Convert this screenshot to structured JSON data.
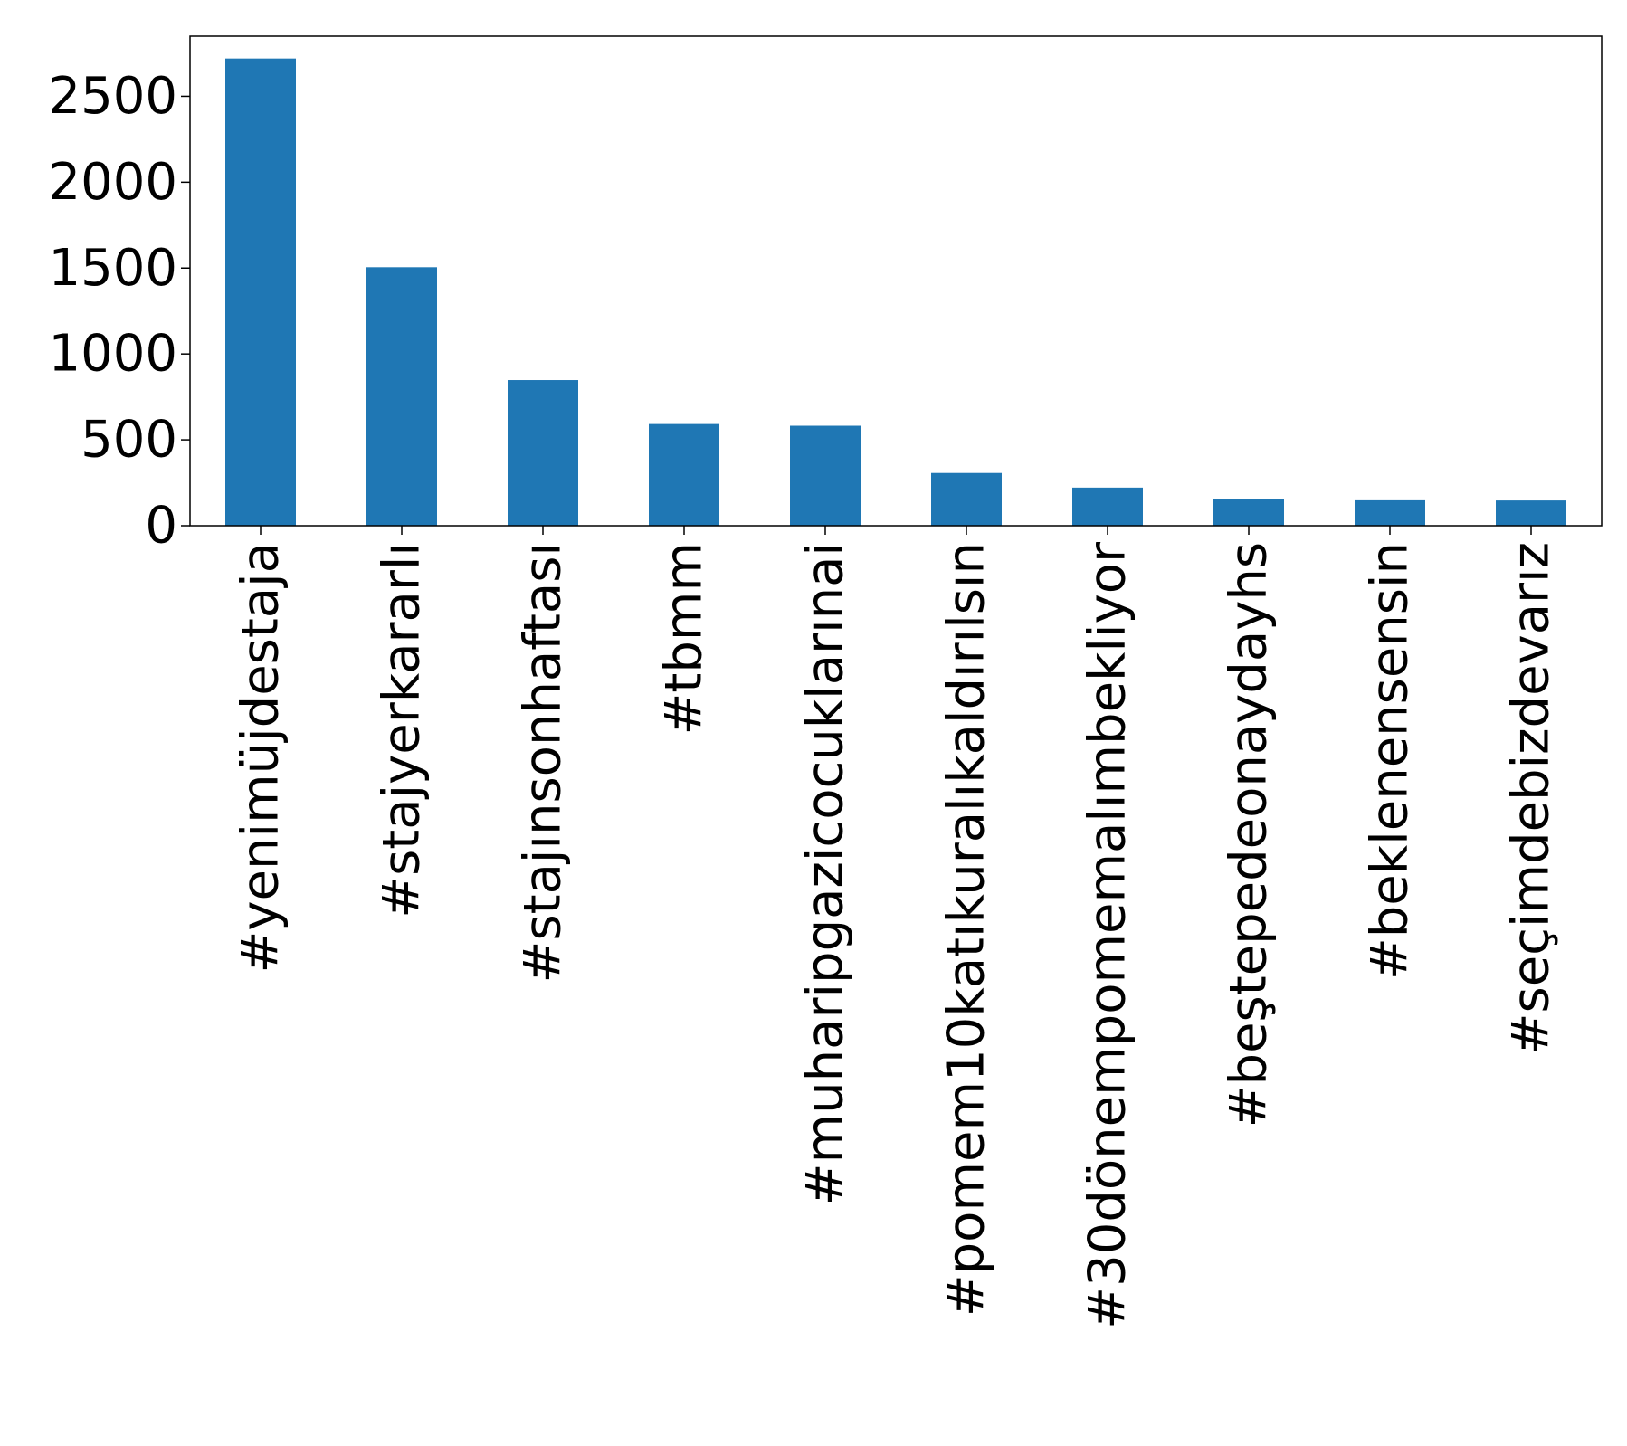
{
  "chart_data": {
    "type": "bar",
    "title": "",
    "xlabel": "",
    "ylabel": "",
    "categories": [
      "#yenimüjdestaja",
      "#stajyerkararlı",
      "#stajınsonhaftası",
      "#tbmm",
      "#muharipgazicocuklarınai",
      "#pomem10katıkuralıkaldırılsın",
      "#30dönempomemalımbekliyor",
      "#beştepedeonaydayhs",
      "#beklenensensin",
      "#seçimdebizdevarız"
    ],
    "values": [
      2720,
      1505,
      848,
      592,
      582,
      307,
      222,
      158,
      148,
      147
    ],
    "ylim": [
      0,
      2850
    ],
    "yticks": [
      0,
      500,
      1000,
      1500,
      2000,
      2500
    ],
    "grid": false,
    "legend": "none",
    "colors": {
      "bar": "#1f77b4",
      "axis": "#000000",
      "background": "#ffffff"
    }
  }
}
